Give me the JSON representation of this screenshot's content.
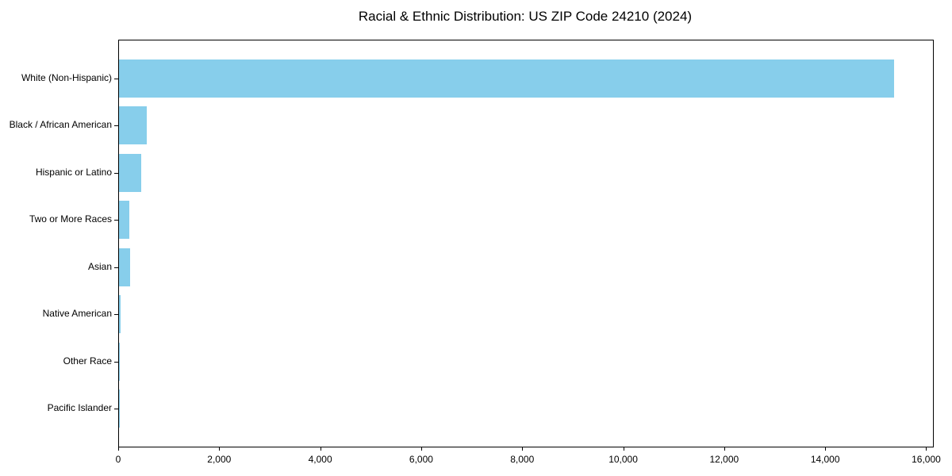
{
  "chart_data": {
    "type": "bar",
    "orientation": "horizontal",
    "title": "Racial & Ethnic Distribution: US ZIP Code 24210 (2024)",
    "categories": [
      "White (Non-Hispanic)",
      "Black / African American",
      "Hispanic or Latino",
      "Two or More Races",
      "Asian",
      "Native American",
      "Other Race",
      "Pacific Islander"
    ],
    "values": [
      15350,
      555,
      445,
      200,
      215,
      25,
      5,
      2
    ],
    "xlabel": "",
    "ylabel": "",
    "xlim": [
      0,
      16118
    ],
    "x_ticks": [
      0,
      2000,
      4000,
      6000,
      8000,
      10000,
      12000,
      14000,
      16000
    ],
    "x_tick_labels": [
      "0",
      "2,000",
      "4,000",
      "6,000",
      "8,000",
      "10,000",
      "12,000",
      "14,000",
      "16,000"
    ],
    "bar_color": "#87CEEB",
    "axis_color": "#000000",
    "text_color": "#000000",
    "grid": false,
    "legend_position": "none"
  }
}
